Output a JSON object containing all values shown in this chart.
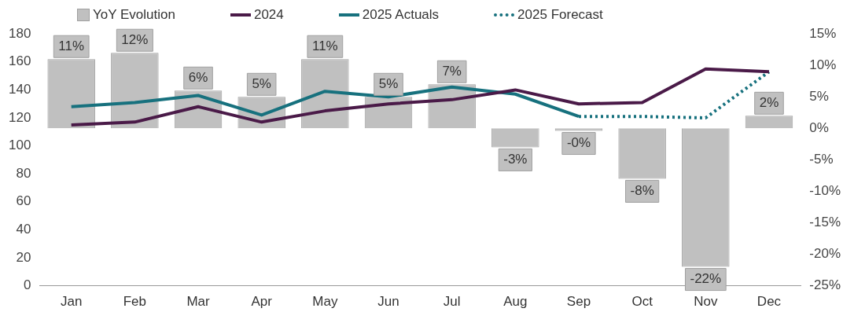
{
  "chart_data": {
    "type": "bar",
    "categories": [
      "Jan",
      "Feb",
      "Mar",
      "Apr",
      "May",
      "Jun",
      "Jul",
      "Aug",
      "Sep",
      "Oct",
      "Nov",
      "Dec"
    ],
    "series": [
      {
        "name": "YoY Evolution",
        "axis": "y2",
        "color": "#c0c0c0",
        "values": [
          11,
          12,
          6,
          5,
          11,
          5,
          7,
          -3,
          -0.4,
          -8,
          -22,
          2
        ],
        "value_labels": [
          "11%",
          "12%",
          "6%",
          "5%",
          "11%",
          "5%",
          "7%",
          "-3%",
          "-0%",
          "-8%",
          "-22%",
          "2%"
        ]
      },
      {
        "name": "2024",
        "type": "line",
        "color": "#4a1a48",
        "line_style": "solid",
        "values": [
          115,
          117,
          128,
          117,
          125,
          130,
          133,
          140,
          130,
          131,
          155,
          153
        ]
      },
      {
        "name": "2025 Actuals",
        "type": "line",
        "color": "#17717e",
        "line_style": "solid",
        "values": [
          128,
          131,
          136,
          122,
          139,
          135,
          142,
          137,
          121,
          null,
          null,
          null
        ]
      },
      {
        "name": "2025 Forecast",
        "type": "line",
        "color": "#17717e",
        "line_style": "dotted",
        "values": [
          null,
          null,
          null,
          null,
          null,
          null,
          null,
          null,
          121,
          121,
          120,
          153
        ]
      }
    ],
    "ylim": [
      0,
      180
    ],
    "yticks": [
      0,
      20,
      40,
      60,
      80,
      100,
      120,
      140,
      160,
      180
    ],
    "y2lim": [
      -25,
      15
    ],
    "y2ticks": [
      {
        "value": -25,
        "label": "-25%"
      },
      {
        "value": -20,
        "label": "-20%"
      },
      {
        "value": -15,
        "label": "-15%"
      },
      {
        "value": -10,
        "label": "-10%"
      },
      {
        "value": -5,
        "label": "-5%"
      },
      {
        "value": 0,
        "label": "0%"
      },
      {
        "value": 5,
        "label": "5%"
      },
      {
        "value": 10,
        "label": "10%"
      },
      {
        "value": 15,
        "label": "15%"
      }
    ],
    "legend": "top",
    "grid": false,
    "marker": "none"
  }
}
